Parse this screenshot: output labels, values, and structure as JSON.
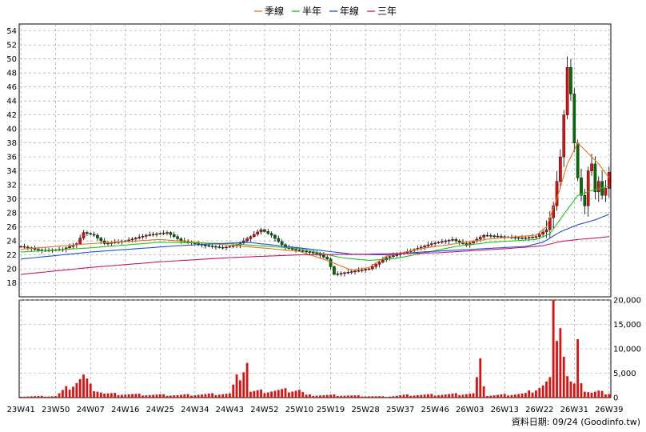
{
  "legend": [
    {
      "name": "季線",
      "color": "#e8741c"
    },
    {
      "name": "半年",
      "color": "#22c022"
    },
    {
      "name": "年線",
      "color": "#1e50d8"
    },
    {
      "name": "三年",
      "color": "#c8186c"
    }
  ],
  "footer": "資料日期: 09/24  (Goodinfo.tw)",
  "colors": {
    "up": "#e01010",
    "down": "#007000",
    "volume": "#e01010",
    "grid": "#9a9a9a"
  },
  "chart_data": {
    "type": "candlestick",
    "x_labels": [
      "23W41",
      "23W50",
      "24W07",
      "24W16",
      "24W25",
      "24W34",
      "24W43",
      "24W52",
      "25W10",
      "25W19",
      "25W28",
      "25W37",
      "25W46",
      "26W03",
      "26W13",
      "26W22",
      "26W31",
      "26W39"
    ],
    "price_axis": {
      "ylim": [
        16,
        55
      ],
      "ticks": [
        18,
        20,
        22,
        24,
        26,
        28,
        30,
        32,
        34,
        36,
        38,
        40,
        42,
        44,
        46,
        48,
        50,
        52,
        54
      ]
    },
    "volume_axis": {
      "ylim": [
        0,
        20000
      ],
      "ticks": [
        0,
        5000,
        10000,
        15000,
        20000
      ],
      "tick_labels": [
        "0",
        "5,000",
        "10,000",
        "15,000",
        "20,000"
      ]
    },
    "price_control": [
      [
        0,
        23.2
      ],
      [
        6,
        22.6
      ],
      [
        12,
        22.8
      ],
      [
        16,
        23.6
      ],
      [
        18,
        25.2
      ],
      [
        21,
        24.8
      ],
      [
        24,
        23.6
      ],
      [
        30,
        24.0
      ],
      [
        36,
        24.8
      ],
      [
        42,
        25.2
      ],
      [
        46,
        24.0
      ],
      [
        52,
        23.4
      ],
      [
        58,
        23.0
      ],
      [
        62,
        23.4
      ],
      [
        66,
        24.6
      ],
      [
        69,
        25.6
      ],
      [
        72,
        24.8
      ],
      [
        76,
        23.0
      ],
      [
        80,
        22.6
      ],
      [
        85,
        22.2
      ],
      [
        88,
        21.4
      ],
      [
        90,
        19.2
      ],
      [
        95,
        19.6
      ],
      [
        100,
        20.0
      ],
      [
        105,
        21.6
      ],
      [
        112,
        22.6
      ],
      [
        118,
        23.6
      ],
      [
        124,
        24.2
      ],
      [
        128,
        23.4
      ],
      [
        133,
        24.8
      ],
      [
        138,
        24.6
      ],
      [
        144,
        24.4
      ],
      [
        148,
        24.6
      ],
      [
        151,
        25.6
      ],
      [
        153,
        29.0
      ],
      [
        155,
        36.0
      ],
      [
        156,
        42.0
      ],
      [
        157,
        48.8
      ],
      [
        158,
        45.0
      ],
      [
        159,
        38.0
      ],
      [
        160,
        33.0
      ],
      [
        161,
        30.5
      ],
      [
        162,
        29.0
      ],
      [
        163,
        34.0
      ],
      [
        164,
        35.0
      ],
      [
        165,
        31.0
      ],
      [
        166,
        32.5
      ],
      [
        167,
        30.5
      ],
      [
        168,
        31.5
      ],
      [
        169,
        33.8
      ]
    ],
    "volume_control": [
      [
        0,
        250
      ],
      [
        10,
        300
      ],
      [
        18,
        4300
      ],
      [
        20,
        2200
      ],
      [
        24,
        800
      ],
      [
        35,
        600
      ],
      [
        45,
        500
      ],
      [
        60,
        800
      ],
      [
        65,
        7900
      ],
      [
        66,
        1200
      ],
      [
        80,
        1600
      ],
      [
        82,
        500
      ],
      [
        90,
        500
      ],
      [
        100,
        300
      ],
      [
        105,
        200
      ],
      [
        110,
        500
      ],
      [
        120,
        600
      ],
      [
        130,
        800
      ],
      [
        132,
        6200
      ],
      [
        134,
        400
      ],
      [
        145,
        800
      ],
      [
        150,
        2500
      ],
      [
        152,
        3500
      ],
      [
        153,
        20500
      ],
      [
        154,
        16600
      ],
      [
        155,
        17800
      ],
      [
        156,
        9300
      ],
      [
        157,
        4400
      ],
      [
        158,
        3000
      ],
      [
        159,
        2400
      ],
      [
        160,
        9200
      ],
      [
        161,
        4200
      ],
      [
        162,
        1500
      ],
      [
        164,
        1000
      ],
      [
        166,
        1200
      ],
      [
        168,
        900
      ]
    ],
    "ma_control": {
      "季線": [
        [
          0,
          22.8
        ],
        [
          20,
          23.6
        ],
        [
          40,
          24.2
        ],
        [
          60,
          23.4
        ],
        [
          80,
          22.5
        ],
        [
          88,
          21.2
        ],
        [
          95,
          19.8
        ],
        [
          100,
          20.2
        ],
        [
          105,
          21.8
        ],
        [
          115,
          22.9
        ],
        [
          125,
          23.6
        ],
        [
          135,
          24.3
        ],
        [
          148,
          24.8
        ],
        [
          151,
          26.0
        ],
        [
          154,
          30.0
        ],
        [
          157,
          35.0
        ],
        [
          160,
          38.0
        ],
        [
          163,
          36.5
        ],
        [
          166,
          35.0
        ],
        [
          169,
          33.0
        ]
      ],
      "半年": [
        [
          0,
          22.4
        ],
        [
          20,
          23.0
        ],
        [
          40,
          23.8
        ],
        [
          60,
          23.6
        ],
        [
          80,
          22.9
        ],
        [
          92,
          21.6
        ],
        [
          100,
          21.2
        ],
        [
          108,
          21.5
        ],
        [
          115,
          22.2
        ],
        [
          125,
          23.2
        ],
        [
          135,
          23.8
        ],
        [
          148,
          24.2
        ],
        [
          152,
          25.0
        ],
        [
          156,
          27.8
        ],
        [
          160,
          30.5
        ],
        [
          164,
          31.2
        ],
        [
          169,
          31.8
        ]
      ],
      "年線": [
        [
          0,
          21.4
        ],
        [
          20,
          22.4
        ],
        [
          45,
          23.3
        ],
        [
          65,
          23.8
        ],
        [
          80,
          23.0
        ],
        [
          95,
          22.1
        ],
        [
          105,
          22.0
        ],
        [
          115,
          22.4
        ],
        [
          130,
          22.8
        ],
        [
          145,
          23.2
        ],
        [
          150,
          23.8
        ],
        [
          155,
          25.3
        ],
        [
          160,
          26.3
        ],
        [
          165,
          27.0
        ],
        [
          169,
          27.8
        ]
      ],
      "三年": [
        [
          0,
          19.2
        ],
        [
          20,
          20.2
        ],
        [
          40,
          21.0
        ],
        [
          60,
          21.6
        ],
        [
          80,
          22.0
        ],
        [
          100,
          22.1
        ],
        [
          120,
          22.3
        ],
        [
          140,
          22.9
        ],
        [
          150,
          23.3
        ],
        [
          155,
          23.9
        ],
        [
          160,
          24.2
        ],
        [
          165,
          24.4
        ],
        [
          169,
          24.6
        ]
      ]
    },
    "title": "",
    "xlabel": "",
    "ylabel": "",
    "grid": true
  }
}
